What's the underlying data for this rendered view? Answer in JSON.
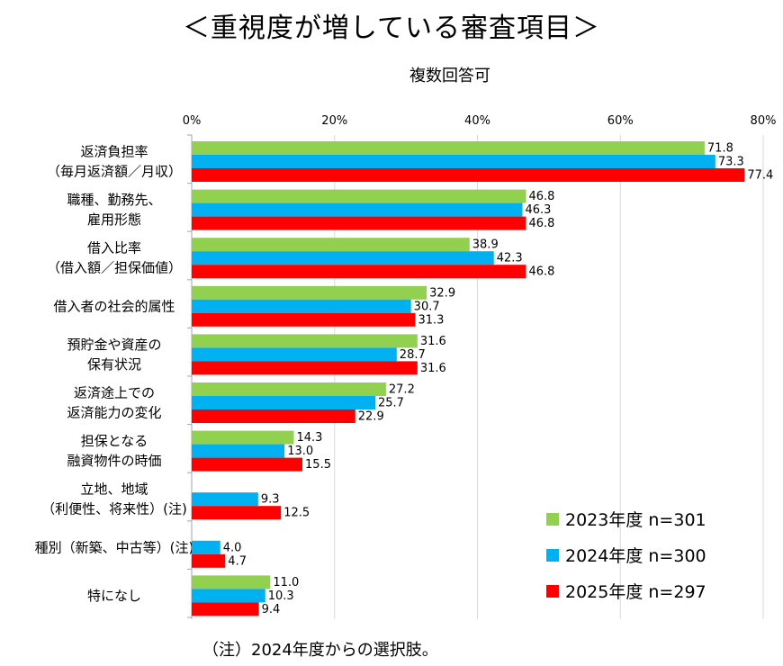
{
  "chart_data": {
    "type": "bar",
    "orientation": "horizontal",
    "title": "＜重視度が増している審査項目＞",
    "subtitle": "複数回答可",
    "note": "（注）2024年度からの選択肢。",
    "xlim": [
      0,
      80
    ],
    "xticks": [
      "0%",
      "20%",
      "40%",
      "60%",
      "80%"
    ],
    "tick_values": [
      0,
      20,
      40,
      60,
      80
    ],
    "grid": true,
    "legend_position": "bottom-right",
    "categories": [
      [
        "返済負担率",
        "（毎月返済額／月収）"
      ],
      [
        "職種、勤務先、",
        "雇用形態"
      ],
      [
        "借入比率",
        "（借入額／担保価値）"
      ],
      [
        "借入者の社会的属性"
      ],
      [
        "預貯金や資産の",
        "保有状況"
      ],
      [
        "返済途上での",
        "返済能力の変化"
      ],
      [
        "担保となる",
        "融資物件の時価"
      ],
      [
        "立地、地域",
        "（利便性、将来性）(注)"
      ],
      [
        "種別（新築、中古等）(注)"
      ],
      [
        "特になし"
      ]
    ],
    "series": [
      {
        "name": "2023年度 n=301",
        "color": "#92D050",
        "values": [
          71.8,
          46.8,
          38.9,
          32.9,
          31.6,
          27.2,
          14.3,
          null,
          null,
          11.0
        ],
        "labels": [
          "71.8",
          "46.8",
          "38.9",
          "32.9",
          "31.6",
          "27.2",
          "14.3",
          null,
          null,
          "11.0"
        ]
      },
      {
        "name": "2024年度 n=300",
        "color": "#00B0F0",
        "values": [
          73.3,
          46.3,
          42.3,
          30.7,
          28.7,
          25.7,
          13.0,
          9.3,
          4.0,
          10.3
        ],
        "labels": [
          "73.3",
          "46.3",
          "42.3",
          "30.7",
          "28.7",
          "25.7",
          "13.0",
          "9.3",
          "4.0",
          "10.3"
        ]
      },
      {
        "name": "2025年度 n=297",
        "color": "#FF0000",
        "values": [
          77.4,
          46.8,
          46.8,
          31.3,
          31.6,
          22.9,
          15.5,
          12.5,
          4.7,
          9.4
        ],
        "labels": [
          "77.4",
          "46.8",
          "46.8",
          "31.3",
          "31.6",
          "22.9",
          "15.5",
          "12.5",
          "4.7",
          "9.4"
        ]
      }
    ]
  }
}
